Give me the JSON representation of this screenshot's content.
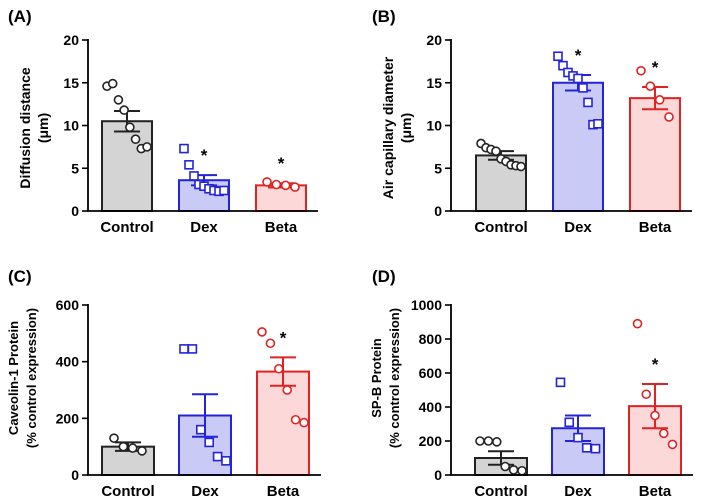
{
  "colors": {
    "control_fill": "#d4d4d4",
    "control_line": "#222222",
    "dex_fill": "#c9caf6",
    "dex_line": "#2323d8",
    "beta_fill": "#fcd8d8",
    "beta_line": "#e02222"
  },
  "chart_data": [
    {
      "panel": "(A)",
      "type": "bar",
      "ylabel": [
        "Diffusion distance",
        "(μm)"
      ],
      "categories": [
        "Control",
        "Dex",
        "Beta"
      ],
      "ylim": [
        0,
        20
      ],
      "yticks": [
        0,
        5,
        10,
        15,
        20
      ],
      "values": [
        10.5,
        3.6,
        3.0
      ],
      "errors": [
        1.2,
        0.6,
        0.25
      ],
      "points": [
        [
          14.6,
          14.9,
          13.0,
          11.8,
          9.8,
          8.4,
          7.3,
          7.5
        ],
        [
          7.3,
          5.4,
          4.1,
          3.1,
          2.9,
          2.6,
          2.4,
          2.3,
          2.4
        ],
        [
          3.4,
          3.1,
          3.0,
          2.8
        ]
      ],
      "significant": [
        false,
        true,
        true
      ],
      "significance_label": "*"
    },
    {
      "panel": "(B)",
      "type": "bar",
      "ylabel": [
        "Air capillary diameter",
        "(μm)"
      ],
      "categories": [
        "Control",
        "Dex",
        "Beta"
      ],
      "ylim": [
        0,
        20
      ],
      "yticks": [
        0,
        5,
        10,
        15,
        20
      ],
      "values": [
        6.5,
        15.0,
        13.2
      ],
      "errors": [
        0.5,
        0.9,
        1.3
      ],
      "points": [
        [
          7.9,
          7.4,
          7.2,
          7.0,
          6.1,
          5.8,
          5.4,
          5.3,
          5.2
        ],
        [
          18.1,
          17.0,
          16.2,
          15.8,
          15.5,
          14.4,
          12.7,
          10.1,
          10.2
        ],
        [
          16.4,
          14.6,
          13.0,
          11.0
        ]
      ],
      "significant": [
        false,
        true,
        true
      ],
      "significance_label": "*"
    },
    {
      "panel": "(C)",
      "type": "bar",
      "ylabel": [
        "Caveolin-1 Protein",
        "(% control expression)"
      ],
      "categories": [
        "Control",
        "Dex",
        "Beta"
      ],
      "ylim": [
        0,
        600
      ],
      "yticks": [
        0,
        200,
        400,
        600
      ],
      "values": [
        100,
        210,
        365
      ],
      "errors": [
        15,
        75,
        50
      ],
      "points": [
        [
          130,
          100,
          95,
          85
        ],
        [
          445,
          445,
          160,
          115,
          65,
          50
        ],
        [
          505,
          465,
          375,
          300,
          195,
          185
        ]
      ],
      "significant": [
        false,
        false,
        true
      ],
      "significance_label": "*"
    },
    {
      "panel": "(D)",
      "type": "bar",
      "ylabel": [
        "SP-B Protein",
        "(% control expression)"
      ],
      "categories": [
        "Control",
        "Dex",
        "Beta"
      ],
      "ylim": [
        0,
        1000
      ],
      "yticks": [
        0,
        200,
        400,
        600,
        800,
        1000
      ],
      "values": [
        100,
        275,
        405
      ],
      "errors": [
        40,
        75,
        130
      ],
      "points": [
        [
          200,
          200,
          195,
          50,
          30,
          25
        ],
        [
          545,
          310,
          220,
          160,
          155
        ],
        [
          890,
          475,
          350,
          245,
          180
        ]
      ],
      "significant": [
        false,
        false,
        true
      ],
      "significance_label": "*"
    }
  ]
}
